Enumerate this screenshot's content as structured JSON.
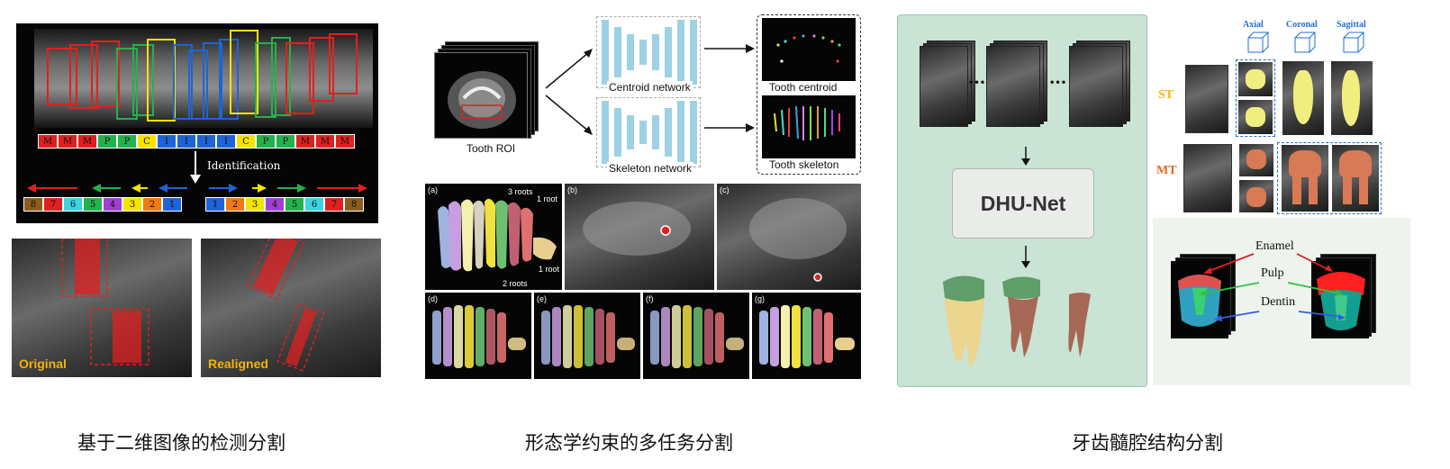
{
  "captions": {
    "left": "基于二维图像的检测分割",
    "middle": "形态学约束的多任务分割",
    "right": "牙齿髓腔结构分割"
  },
  "panel1": {
    "tooth_types": [
      "M",
      "M",
      "M",
      "P",
      "P",
      "C",
      "I",
      "I",
      "I",
      "I",
      "C",
      "P",
      "P",
      "M",
      "M",
      "M"
    ],
    "tooth_type_colors": [
      "#e02020",
      "#e02020",
      "#e02020",
      "#23b14d",
      "#23b14d",
      "#f4e300",
      "#1e63d8",
      "#1e63d8",
      "#1e63d8",
      "#1e63d8",
      "#f4e300",
      "#23b14d",
      "#23b14d",
      "#e02020",
      "#e02020",
      "#e02020"
    ],
    "identification_label": "Identification",
    "left_numbers": [
      "8",
      "7",
      "6",
      "5",
      "4",
      "3",
      "2",
      "1"
    ],
    "right_numbers": [
      "1",
      "2",
      "3",
      "4",
      "5",
      "6",
      "7",
      "8"
    ],
    "number_colors": [
      "#8b5e1a",
      "#e02020",
      "#3dd3e0",
      "#23b14d",
      "#a040d0",
      "#f4e300",
      "#f07a10",
      "#1e63d8"
    ],
    "original_label": "Original",
    "realigned_label": "Realigned",
    "accent": "#f5b400"
  },
  "panel2": {
    "roi_label": "Tooth ROI",
    "centroid_network_label": "Centroid network",
    "skeleton_network_label": "Skeleton network",
    "centroid_output_label": "Tooth centroid",
    "skeleton_output_label": "Tooth skeleton",
    "subfigure_labels": [
      "(a)",
      "(b)",
      "(c)",
      "(d)",
      "(e)",
      "(f)",
      "(g)"
    ],
    "annotations": {
      "three_roots": "3 roots",
      "one_root_top": "1 root",
      "two_roots": "2 roots",
      "one_root_bottom": "1 root"
    }
  },
  "panel3": {
    "network_label": "DHU-Net",
    "ellipsis": "•••",
    "view_labels": [
      "Axial",
      "Coronal",
      "Sagittal"
    ],
    "st_label": "ST",
    "mt_label": "MT",
    "enamel_label": "Enamel",
    "pulp_label": "Pulp",
    "dentin_label": "Dentin",
    "bg_color": "#c9e3d4",
    "st_color": "#f5b400",
    "mt_color": "#e06a1a",
    "view_label_color": "#1f6fd1"
  }
}
